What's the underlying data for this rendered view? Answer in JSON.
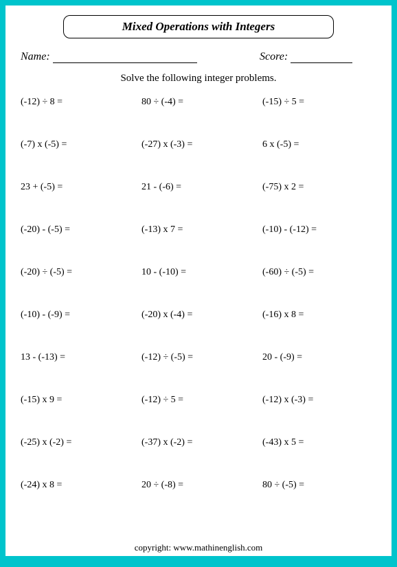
{
  "title": "Mixed Operations with Integers",
  "name_label": "Name:",
  "score_label": "Score:",
  "instruction": "Solve the following integer problems.",
  "problems": [
    "(-12)  ÷  8  =",
    "80  ÷  (-4)  =",
    "(-15)  ÷  5  =",
    "(-7)  x  (-5)  =",
    "(-27)  x  (-3)  =",
    "6  x  (-5)  =",
    "23  +  (-5)  =",
    "21  -  (-6)  =",
    "(-75)  x  2  =",
    "(-20)  -  (-5)  =",
    "(-13)  x  7  =",
    "(-10)  -  (-12)  =",
    "(-20)  ÷  (-5)  =",
    "10  -  (-10)  =",
    "(-60)  ÷  (-5)  =",
    "(-10)  -  (-9)  =",
    "(-20)  x  (-4)  =",
    "(-16)  x  8  =",
    "13  -  (-13)  =",
    "(-12)  ÷  (-5)  =",
    "20  -  (-9)  =",
    "(-15) x 9  =",
    "(-12) ÷ 5  =",
    "(-12) x (-3)  =",
    "(-25)  x (-2)  =",
    "(-37)  x  (-2)  =",
    "(-43)  x  5  =",
    "(-24) x 8  =",
    "20  ÷  (-8)  =",
    "80  ÷  (-5)  ="
  ],
  "copyright": "copyright:   www.mathinenglish.com",
  "colors": {
    "page_bg": "#ffffff",
    "outer_bg": "#00c4cc",
    "text": "#000000"
  },
  "fonts": {
    "family": "Times New Roman",
    "title_size_pt": 17,
    "header_size_pt": 16,
    "instruction_size_pt": 15,
    "problem_size_pt": 14,
    "copyright_size_pt": 13
  },
  "layout": {
    "columns": 3,
    "rows": 10
  }
}
